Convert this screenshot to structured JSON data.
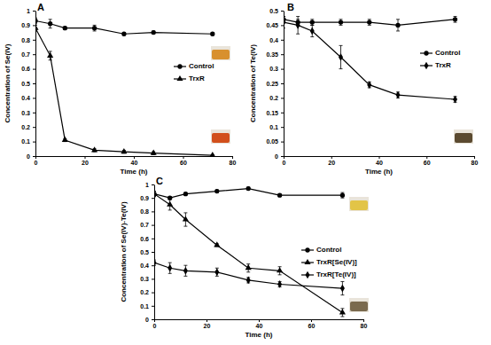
{
  "chart_data": [
    {
      "type": "line",
      "title": "A",
      "x_label": "Time (h)",
      "y_label": "Concentration of Se(IV)",
      "x": [
        0,
        6,
        12,
        24,
        36,
        48,
        72
      ],
      "xlim": [
        0,
        80
      ],
      "xticks": [
        0,
        20,
        40,
        60,
        80
      ],
      "ylim": [
        0,
        1
      ],
      "yticks": [
        0,
        0.1,
        0.2,
        0.3,
        0.4,
        0.5,
        0.6,
        0.7,
        0.8,
        0.9,
        1
      ],
      "legend": "right",
      "series": [
        {
          "name": "Control",
          "color": "#000000",
          "marker": "circle",
          "values": [
            0.93,
            0.91,
            0.88,
            0.88,
            0.84,
            0.85,
            0.84
          ],
          "errors": [
            0.02,
            0.03,
            0.01,
            0.02,
            0.01,
            0.01,
            0.01
          ]
        },
        {
          "name": "TrxR",
          "color": "#000000",
          "marker": "triangle",
          "values": [
            0.88,
            0.69,
            0.11,
            0.04,
            0.03,
            0.02,
            0.005
          ],
          "errors": [
            0.02,
            0.03,
            0.01,
            0.01,
            0.01,
            0.01,
            0.005
          ]
        }
      ]
    },
    {
      "type": "line",
      "title": "B",
      "x_label": "Time (h)",
      "y_label": "Concentration of Te(IV)",
      "x": [
        0,
        6,
        12,
        24,
        36,
        48,
        72
      ],
      "xlim": [
        0,
        80
      ],
      "xticks": [
        0,
        20,
        40,
        60,
        80
      ],
      "ylim": [
        0,
        0.5
      ],
      "yticks": [
        0,
        0.05,
        0.1,
        0.15,
        0.2,
        0.25,
        0.3,
        0.35,
        0.4,
        0.45,
        0.5
      ],
      "legend": "right",
      "series": [
        {
          "name": "Control",
          "color": "#000000",
          "marker": "circle",
          "values": [
            0.47,
            0.46,
            0.46,
            0.46,
            0.46,
            0.45,
            0.47
          ],
          "errors": [
            0.01,
            0.01,
            0.01,
            0.01,
            0.01,
            0.02,
            0.01
          ]
        },
        {
          "name": "TrxR",
          "color": "#000000",
          "marker": "diamond",
          "values": [
            0.46,
            0.45,
            0.43,
            0.34,
            0.245,
            0.21,
            0.195
          ],
          "errors": [
            0.02,
            0.03,
            0.02,
            0.04,
            0.01,
            0.01,
            0.01
          ]
        }
      ]
    },
    {
      "type": "line",
      "title": "C",
      "x_label": "Time (h)",
      "y_label": "Concentration of Se(IV)-Te(IV)",
      "x": [
        0,
        6,
        12,
        24,
        36,
        48,
        72
      ],
      "xlim": [
        0,
        80
      ],
      "xticks": [
        0,
        20,
        40,
        60,
        80
      ],
      "ylim": [
        0,
        1
      ],
      "yticks": [
        0,
        0.1,
        0.2,
        0.3,
        0.4,
        0.5,
        0.6,
        0.7,
        0.8,
        0.9,
        1
      ],
      "legend": "right",
      "series": [
        {
          "name": "Control",
          "color": "#000000",
          "marker": "circle",
          "values": [
            0.93,
            0.9,
            0.93,
            0.95,
            0.97,
            0.92,
            0.92
          ],
          "errors": [
            0.02,
            0.01,
            0.01,
            0.01,
            0.01,
            0.01,
            0.02
          ]
        },
        {
          "name": "TrxR[Se(IV)]",
          "color": "#000000",
          "marker": "triangle",
          "values": [
            0.93,
            0.85,
            0.74,
            0.55,
            0.38,
            0.36,
            0.05
          ],
          "errors": [
            0.02,
            0.04,
            0.05,
            0.01,
            0.03,
            0.03,
            0.03
          ]
        },
        {
          "name": "TrxR[Te(IV)]",
          "color": "#000000",
          "marker": "diamond",
          "values": [
            0.42,
            0.38,
            0.36,
            0.35,
            0.29,
            0.26,
            0.23
          ],
          "errors": [
            0.02,
            0.04,
            0.04,
            0.03,
            0.02,
            0.02,
            0.05
          ]
        }
      ]
    }
  ]
}
